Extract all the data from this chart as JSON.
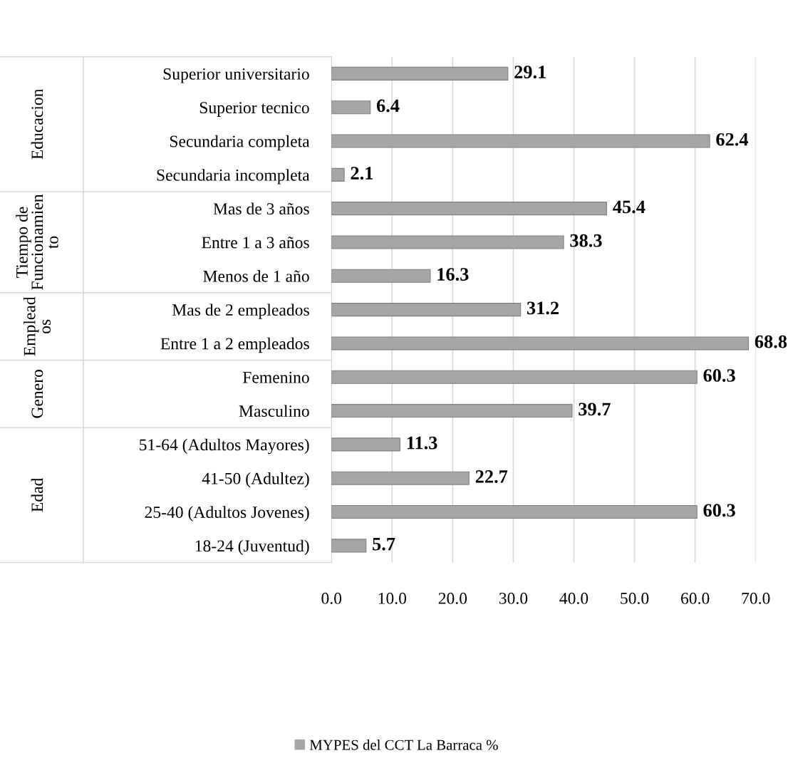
{
  "chart_data": {
    "type": "bar",
    "orientation": "horizontal",
    "categories": [
      "Superior universitario",
      "Superior tecnico",
      "Secundaria completa",
      "Secundaria incompleta",
      "Mas de 3 años",
      "Entre 1 a 3 años",
      "Menos de 1 año",
      "Mas de 2 empleados",
      "Entre 1 a 2 empleados",
      "Femenino",
      "Masculino",
      "51-64 (Adultos Mayores)",
      "41-50 (Adultez)",
      "25-40 (Adultos Jovenes)",
      "18-24 (Juventud)"
    ],
    "series": [
      {
        "name": "MYPES del CCT La Barraca %",
        "color": "#a6a6a6",
        "values": [
          29.1,
          6.4,
          62.4,
          2.1,
          45.4,
          38.3,
          16.3,
          31.2,
          68.8,
          60.3,
          39.7,
          11.3,
          22.7,
          60.3,
          5.7
        ]
      }
    ],
    "xlim": [
      0,
      70
    ],
    "xticks": [
      {
        "value": 0,
        "label": "0.0"
      },
      {
        "value": 10,
        "label": "10.0"
      },
      {
        "value": 20,
        "label": "20.0"
      },
      {
        "value": 30,
        "label": "30.0"
      },
      {
        "value": 40,
        "label": "40.0"
      },
      {
        "value": 50,
        "label": "50.0"
      },
      {
        "value": 60,
        "label": "60.0"
      },
      {
        "value": 70,
        "label": "70.0"
      }
    ],
    "annotations": [
      "Educacion",
      "Tiempo de\nFuncionamien\nto",
      "Emplead\nos",
      "Genero",
      "Edad"
    ],
    "data_labels": true,
    "grid": "x",
    "legend": "bottom"
  }
}
